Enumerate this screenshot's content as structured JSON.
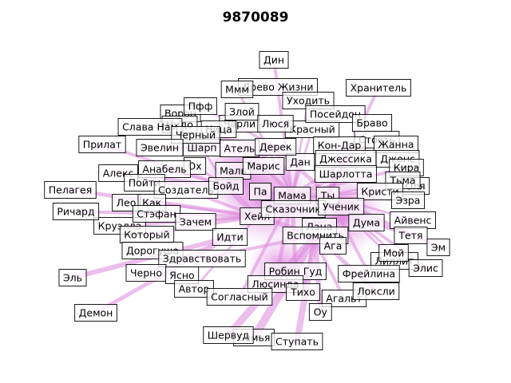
{
  "title": "9870089",
  "colors": {
    "edge": "#dd88dd",
    "hub_glow": "#cc55cc",
    "node_border": "#000000",
    "node_fill": "#ffffff"
  },
  "chart_data": {
    "type": "network",
    "title": "9870089",
    "nodes": [
      "Дин",
      "Ммм",
      "Древо Жизни",
      "Хранитель",
      "Уходить",
      "Пфф",
      "Ворон",
      "Злой",
      "Посейдон",
      "Слава Нам",
      "Нидо",
      "Чарли",
      "Люся",
      "Красный",
      "Браво",
      "Стоять",
      "Черный",
      "Ница",
      "Прилат",
      "Эвелин",
      "Шарп",
      "Атель",
      "Дерек",
      "Кон-Дар",
      "Жанна",
      "Джессика",
      "Джонс",
      "Ох",
      "Анабель",
      "Марис",
      "Дан",
      "Шарлотта",
      "Кира",
      "Алекс",
      "Маль",
      "Тьма",
      "Пелагея",
      "Пойти",
      "Создатель",
      "Бойд",
      "Ты",
      "Кристи",
      "Оля",
      "Эзра",
      "Лео",
      "Как",
      "Мама",
      "Па",
      "Ричард",
      "Стэфан",
      "Хейл",
      "Сказочник",
      "Ученик",
      "Лана",
      "Дума",
      "Айвенс",
      "Круэлла",
      "Зачем",
      "Который",
      "Идти",
      "Вспомнить",
      "Тетя",
      "Эм",
      "Дорогуша",
      "Ага",
      "Мой",
      "Здравствовать",
      "Лиллит",
      "Элис",
      "Эль",
      "Черно",
      "Ясно",
      "Робин Гуд",
      "Фрейлина",
      "Автор",
      "Люсинда",
      "Согласный",
      "Локсли",
      "Тихо",
      "Агальт",
      "Демон",
      "Оу",
      "Шервуд",
      "Ступать",
      "Семья"
    ],
    "hubs": [
      "Мама",
      "Ты",
      "Вспомнить",
      "Бойд",
      "Дерек",
      "Хейл"
    ]
  }
}
